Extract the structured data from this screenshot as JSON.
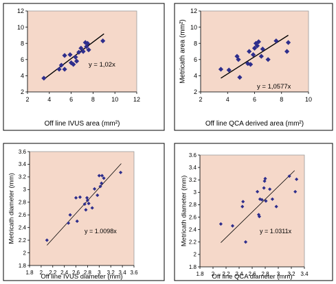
{
  "style": {
    "plot_background": "#f5d8c9",
    "marker_color": "#2e2e8c",
    "line_color": "#000000"
  },
  "chart_data": [
    {
      "type": "scatter",
      "title": "",
      "xlabel": "Off line IVUS area (mm²)",
      "ylabel": "",
      "xlim": [
        2,
        12
      ],
      "ylim": [
        2,
        12
      ],
      "xticks": [
        "2",
        "4",
        "6",
        "8",
        "10",
        "12"
      ],
      "yticks": [
        "2",
        "4",
        "6",
        "8",
        "10",
        "12"
      ],
      "grid": false,
      "marker": "diamond",
      "annotation": "y = 1,02x",
      "trendline": {
        "x": [
          3.5,
          9.0
        ],
        "y": [
          3.57,
          9.18
        ]
      },
      "points": [
        {
          "x": 3.5,
          "y": 3.7
        },
        {
          "x": 4.9,
          "y": 4.8
        },
        {
          "x": 5.1,
          "y": 5.3
        },
        {
          "x": 5.4,
          "y": 4.8
        },
        {
          "x": 5.4,
          "y": 6.5
        },
        {
          "x": 5.9,
          "y": 6.6
        },
        {
          "x": 6.0,
          "y": 5.6
        },
        {
          "x": 6.2,
          "y": 5.4
        },
        {
          "x": 6.4,
          "y": 6.3
        },
        {
          "x": 6.5,
          "y": 5.8
        },
        {
          "x": 6.7,
          "y": 6.9
        },
        {
          "x": 6.9,
          "y": 7.4
        },
        {
          "x": 7.1,
          "y": 7.0
        },
        {
          "x": 7.3,
          "y": 8.1
        },
        {
          "x": 7.4,
          "y": 7.6
        },
        {
          "x": 7.5,
          "y": 8.0
        },
        {
          "x": 7.6,
          "y": 7.2
        },
        {
          "x": 8.9,
          "y": 8.3
        }
      ]
    },
    {
      "type": "scatter",
      "title": "",
      "xlabel": "Off line QCA derived area (mm²)",
      "ylabel": "Metricath area (mm²)",
      "xlim": [
        2,
        10
      ],
      "ylim": [
        2,
        12
      ],
      "xticks": [
        "2",
        "4",
        "6",
        "8",
        "10"
      ],
      "yticks": [
        "2",
        "4",
        "6",
        "8",
        "10",
        "12"
      ],
      "grid": false,
      "marker": "diamond",
      "annotation": "y = 1,0577x",
      "trendline": {
        "x": [
          3.5,
          8.5
        ],
        "y": [
          3.7,
          9.0
        ]
      },
      "points": [
        {
          "x": 3.5,
          "y": 4.8
        },
        {
          "x": 4.7,
          "y": 6.4
        },
        {
          "x": 4.8,
          "y": 6.0
        },
        {
          "x": 4.9,
          "y": 3.8
        },
        {
          "x": 5.5,
          "y": 5.5
        },
        {
          "x": 5.6,
          "y": 7.0
        },
        {
          "x": 5.7,
          "y": 5.4
        },
        {
          "x": 5.9,
          "y": 6.6
        },
        {
          "x": 6.0,
          "y": 7.4
        },
        {
          "x": 6.1,
          "y": 8.0
        },
        {
          "x": 6.2,
          "y": 7.7
        },
        {
          "x": 6.3,
          "y": 8.2
        },
        {
          "x": 6.5,
          "y": 6.4
        },
        {
          "x": 6.6,
          "y": 7.3
        },
        {
          "x": 7.0,
          "y": 6.0
        },
        {
          "x": 7.6,
          "y": 8.3
        },
        {
          "x": 8.4,
          "y": 7.0
        },
        {
          "x": 8.5,
          "y": 8.1
        },
        {
          "x": 4.1,
          "y": 4.7
        }
      ]
    },
    {
      "type": "scatter",
      "title": "",
      "xlabel": "Off line IVUS diameter (mm)",
      "ylabel": "Metricath diameter (mm)",
      "xlim": [
        1.8,
        3.6
      ],
      "ylim": [
        1.8,
        3.6
      ],
      "xticks": [
        "1.8",
        "2",
        "2.2",
        "2.4",
        "2.6",
        "2.8",
        "3",
        "3.2",
        "3.4",
        "3.6"
      ],
      "yticks": [
        "1.8",
        "2",
        "2.2",
        "2.4",
        "2.6",
        "2.8",
        "3",
        "3.2",
        "3.4",
        "3.6"
      ],
      "grid": false,
      "marker": "diamond",
      "annotation": "y = 1.0098x",
      "trendline": {
        "x": [
          2.1,
          3.38
        ],
        "y": [
          2.12,
          3.41
        ]
      },
      "points": [
        {
          "x": 2.1,
          "y": 2.2
        },
        {
          "x": 2.47,
          "y": 2.47
        },
        {
          "x": 2.5,
          "y": 2.6
        },
        {
          "x": 2.6,
          "y": 2.87
        },
        {
          "x": 2.62,
          "y": 2.5
        },
        {
          "x": 2.67,
          "y": 2.88
        },
        {
          "x": 2.75,
          "y": 2.77
        },
        {
          "x": 2.77,
          "y": 2.68
        },
        {
          "x": 2.79,
          "y": 2.87
        },
        {
          "x": 2.8,
          "y": 2.83
        },
        {
          "x": 2.82,
          "y": 2.78
        },
        {
          "x": 2.88,
          "y": 2.71
        },
        {
          "x": 2.92,
          "y": 3.01
        },
        {
          "x": 2.97,
          "y": 2.91
        },
        {
          "x": 3.0,
          "y": 3.22
        },
        {
          "x": 3.02,
          "y": 3.05
        },
        {
          "x": 3.04,
          "y": 3.1
        },
        {
          "x": 3.05,
          "y": 3.22
        },
        {
          "x": 3.08,
          "y": 3.18
        },
        {
          "x": 3.37,
          "y": 3.27
        }
      ]
    },
    {
      "type": "scatter",
      "title": "",
      "xlabel": "Off line QCA diameter (mm)",
      "ylabel": "Metricath diameter (mm)",
      "xlim": [
        1.8,
        3.4
      ],
      "ylim": [
        1.8,
        3.6
      ],
      "xticks": [
        "1.8",
        "2",
        "2.2",
        "2.4",
        "2.6",
        "2.8",
        "3",
        "3.2",
        "3.4"
      ],
      "yticks": [
        "1.8",
        "2",
        "2.2",
        "2.4",
        "2.6",
        "2.8",
        "3",
        "3.2",
        "3.4",
        "3.6"
      ],
      "grid": false,
      "marker": "diamond",
      "annotation": "y = 1.0311x",
      "trendline": {
        "x": [
          2.12,
          3.25
        ],
        "y": [
          2.19,
          3.35
        ]
      },
      "points": [
        {
          "x": 2.12,
          "y": 2.49
        },
        {
          "x": 2.3,
          "y": 2.46
        },
        {
          "x": 2.45,
          "y": 2.77
        },
        {
          "x": 2.46,
          "y": 2.85
        },
        {
          "x": 2.5,
          "y": 2.2
        },
        {
          "x": 2.68,
          "y": 3.01
        },
        {
          "x": 2.7,
          "y": 2.64
        },
        {
          "x": 2.71,
          "y": 2.61
        },
        {
          "x": 2.72,
          "y": 2.89
        },
        {
          "x": 2.75,
          "y": 2.88
        },
        {
          "x": 2.78,
          "y": 3.07
        },
        {
          "x": 2.79,
          "y": 3.18
        },
        {
          "x": 2.8,
          "y": 3.22
        },
        {
          "x": 2.81,
          "y": 2.86
        },
        {
          "x": 2.87,
          "y": 3.05
        },
        {
          "x": 2.91,
          "y": 2.89
        },
        {
          "x": 2.97,
          "y": 2.77
        },
        {
          "x": 3.17,
          "y": 3.26
        },
        {
          "x": 3.26,
          "y": 3.01
        },
        {
          "x": 3.28,
          "y": 3.21
        }
      ]
    }
  ]
}
